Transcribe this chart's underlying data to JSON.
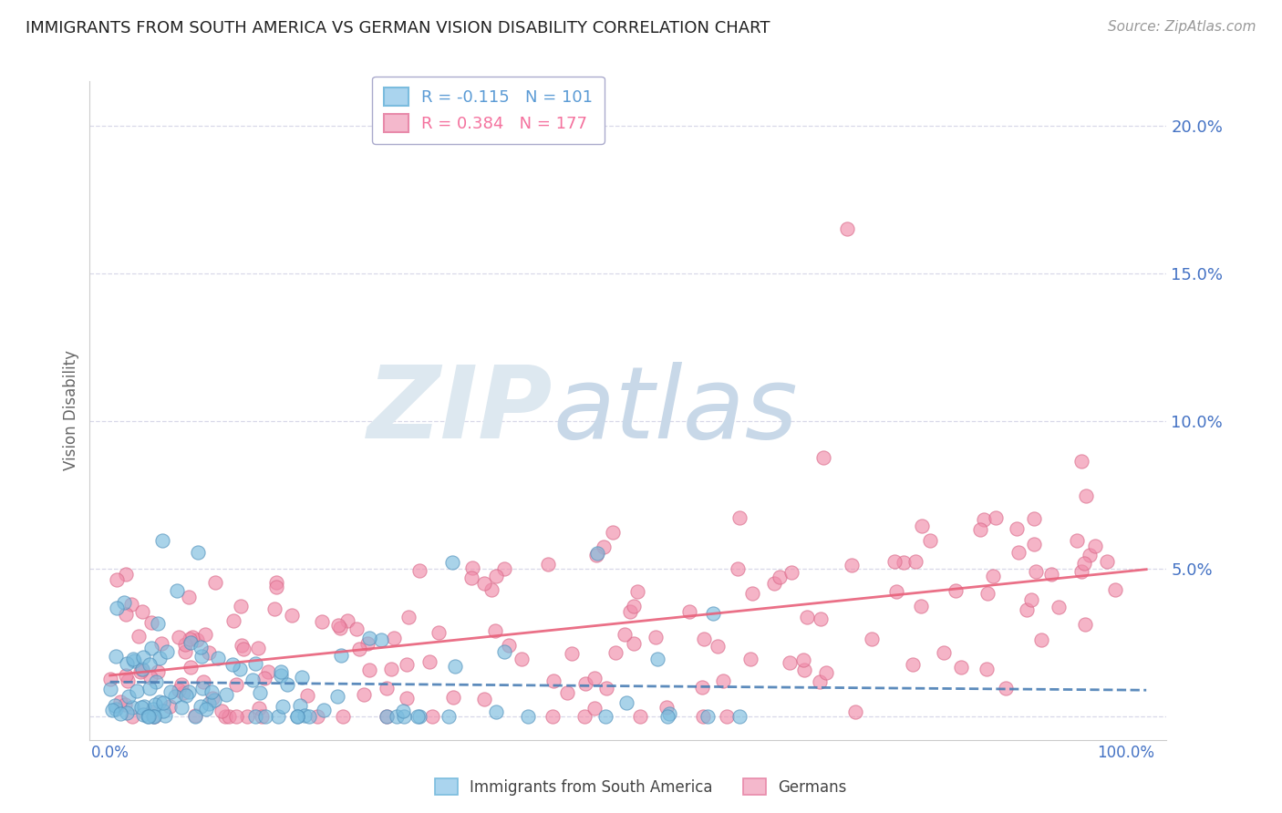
{
  "title": "IMMIGRANTS FROM SOUTH AMERICA VS GERMAN VISION DISABILITY CORRELATION CHART",
  "source": "Source: ZipAtlas.com",
  "ylabel": "Vision Disability",
  "y_ticks": [
    0.0,
    0.05,
    0.1,
    0.15,
    0.2
  ],
  "y_tick_labels": [
    "",
    "5.0%",
    "10.0%",
    "15.0%",
    "20.0%"
  ],
  "xlim": [
    -0.02,
    1.04
  ],
  "ylim": [
    -0.008,
    0.215
  ],
  "legend_R1": "R = -0.115",
  "legend_N1": "N = 101",
  "legend_R2": "R = 0.384",
  "legend_N2": "N = 177",
  "legend_color1": "#5b9bd5",
  "legend_color2": "#f4729e",
  "series1_color": "#7bbcde",
  "series2_color": "#f08caa",
  "series1_edge": "#5090bb",
  "series2_edge": "#d96888",
  "trendline1_color": "#4a7fb5",
  "trendline2_color": "#e8607a",
  "watermark_zip_color": "#dde8f0",
  "watermark_atlas_color": "#c8d8e8",
  "background_color": "#ffffff",
  "grid_color": "#d8d8e8"
}
